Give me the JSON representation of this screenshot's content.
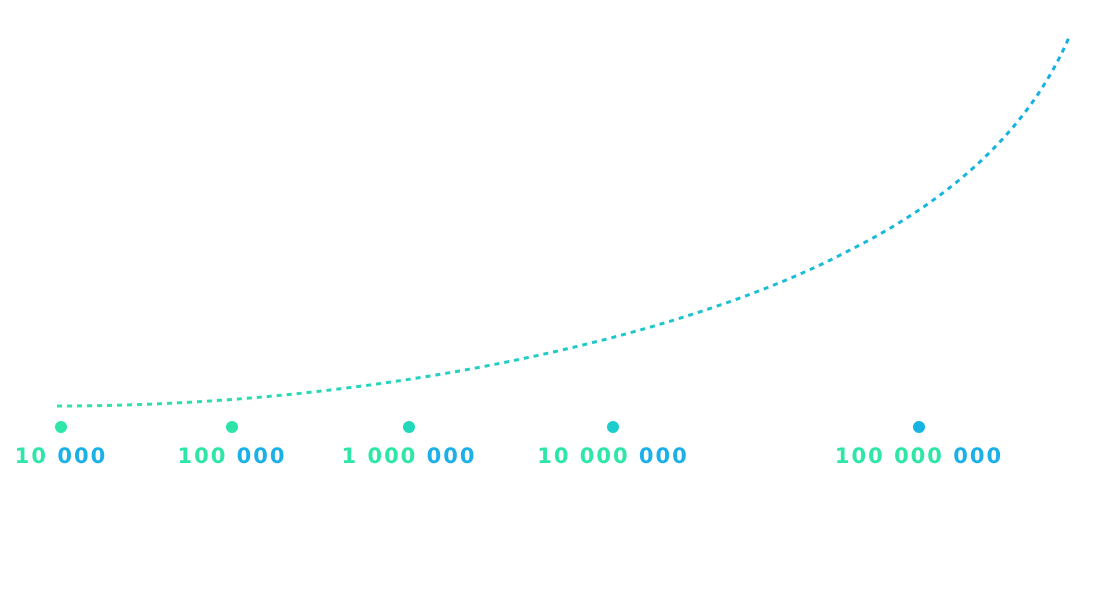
{
  "diagram": {
    "colors": {
      "start": "#2ee6a6",
      "end": "#14aee6",
      "label_prefix": "#2ee6a6",
      "label_suffix": "#1bb0e8"
    },
    "milestones": [
      {
        "value": 10000,
        "prefix": "10",
        "suffix": "000",
        "dot_color": "#2ee6a6"
      },
      {
        "value": 100000,
        "prefix": "100",
        "suffix": "000",
        "dot_color": "#2ee3a8"
      },
      {
        "value": 1000000,
        "prefix": "1 000",
        "suffix": "000",
        "dot_color": "#22d8bb"
      },
      {
        "value": 10000000,
        "prefix": "10 000",
        "suffix": "000",
        "dot_color": "#1fcccc"
      },
      {
        "value": 100000000,
        "prefix": "100 000",
        "suffix": "000",
        "dot_color": "#17b3e3"
      }
    ]
  }
}
